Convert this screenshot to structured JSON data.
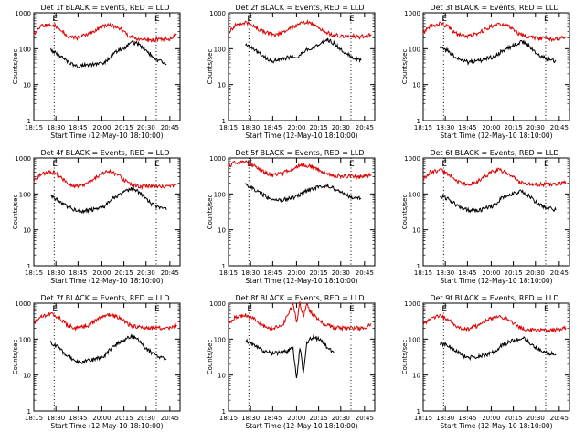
{
  "figure": {
    "colors": {
      "events": "#000000",
      "lld": "#dd0000",
      "axes": "#000000"
    },
    "xtick_labels": [
      "18:15",
      "18:30",
      "18:45",
      "20:00",
      "20:15",
      "20:30",
      "20:45"
    ],
    "ytick_labels": [
      "1",
      "10",
      "100",
      "1000"
    ],
    "marker_label": "E",
    "panels": [
      {
        "title": "Det 1f BLACK = Events, RED = LLD",
        "ylabel": "Counts/sec",
        "xlabel": "Start Time (12-May-10 18:10:00)"
      },
      {
        "title": "Det 2f BLACK = Events, RED = LLD",
        "ylabel": "Counts/sec",
        "xlabel": "Start Time (12-May-10 18:10:00)"
      },
      {
        "title": "Det 3f BLACK = Events, RED = LLD",
        "ylabel": "Counts/sec",
        "xlabel": "Start Time (12-May-10 18:10:00)"
      },
      {
        "title": "Det 4f BLACK = Events, RED = LLD",
        "ylabel": "Counts/sec",
        "xlabel": "Start Time (12-May-10 18:10:00)"
      },
      {
        "title": "Det 5f BLACK = Events, RED = LLD",
        "ylabel": "Counts/sec",
        "xlabel": "Start Time (12-May-10 18:10:00)"
      },
      {
        "title": "Det 6f BLACK = Events, RED = LLD",
        "ylabel": "Counts/sec",
        "xlabel": "Start Time (12-May-10 18:10:00)"
      },
      {
        "title": "Det 7f BLACK = Events, RED = LLD",
        "ylabel": "Counts/sec",
        "xlabel": "Start Time (12-May-10 18:10:00)"
      },
      {
        "title": "Det 8f BLACK = Events, RED = LLD",
        "ylabel": "Counts/sec",
        "xlabel": "Start Time (12-May-10 18:10:00)"
      },
      {
        "title": "Det 9f BLACK = Events, RED = LLD",
        "ylabel": "Counts/sec",
        "xlabel": "Start Time (12-May-10 18:10:00)"
      }
    ]
  },
  "chart_data": [
    {
      "type": "line",
      "title": "Det 1f BLACK = Events, RED = LLD",
      "xlabel": "Start Time (12-May-10 18:10:00)",
      "ylabel": "Counts/sec",
      "yscale": "log",
      "ylim": [
        1,
        1000
      ],
      "xlim_minutes": [
        0,
        43
      ],
      "event_markers_minutes": [
        6,
        36
      ],
      "series": [
        {
          "name": "LLD",
          "color": "red",
          "x_minutes": [
            0,
            2,
            5,
            7,
            10,
            13,
            16,
            20,
            22,
            25,
            28,
            31,
            34,
            36,
            38,
            40,
            42
          ],
          "values": [
            250,
            420,
            480,
            400,
            220,
            200,
            250,
            420,
            470,
            380,
            220,
            180,
            170,
            180,
            180,
            190,
            250
          ]
        },
        {
          "name": "Events",
          "color": "black",
          "x_minutes": [
            5,
            7,
            9,
            11,
            13,
            15,
            17,
            19,
            21,
            23,
            25,
            27,
            29,
            31,
            33,
            35,
            37,
            39
          ],
          "values": [
            95,
            70,
            50,
            38,
            32,
            35,
            36,
            40,
            42,
            70,
            90,
            110,
            150,
            130,
            90,
            60,
            45,
            38
          ]
        }
      ]
    },
    {
      "type": "line",
      "title": "Det 2f BLACK = Events, RED = LLD",
      "xlabel": "Start Time (12-May-10 18:10:00)",
      "ylabel": "Counts/sec",
      "yscale": "log",
      "ylim": [
        1,
        1000
      ],
      "xlim_minutes": [
        0,
        43
      ],
      "event_markers_minutes": [
        6,
        36
      ],
      "series": [
        {
          "name": "LLD",
          "color": "red",
          "x_minutes": [
            0,
            2,
            5,
            7,
            10,
            13,
            16,
            20,
            22,
            25,
            28,
            31,
            34,
            36,
            38,
            40,
            42
          ],
          "values": [
            280,
            450,
            550,
            460,
            300,
            240,
            280,
            450,
            560,
            480,
            300,
            240,
            220,
            230,
            210,
            220,
            240
          ]
        },
        {
          "name": "Events",
          "color": "black",
          "x_minutes": [
            5,
            7,
            9,
            11,
            13,
            15,
            17,
            19,
            21,
            23,
            25,
            27,
            29,
            31,
            33,
            35,
            37,
            39
          ],
          "values": [
            140,
            100,
            75,
            55,
            45,
            50,
            55,
            60,
            65,
            90,
            110,
            140,
            180,
            140,
            95,
            70,
            55,
            48
          ]
        }
      ]
    },
    {
      "type": "line",
      "title": "Det 3f BLACK = Events, RED = LLD",
      "xlabel": "Start Time (12-May-10 18:10:00)",
      "ylabel": "Counts/sec",
      "yscale": "log",
      "ylim": [
        1,
        1000
      ],
      "xlim_minutes": [
        0,
        43
      ],
      "event_markers_minutes": [
        6,
        36
      ],
      "series": [
        {
          "name": "LLD",
          "color": "red",
          "x_minutes": [
            0,
            2,
            5,
            7,
            10,
            13,
            16,
            20,
            22,
            25,
            28,
            31,
            34,
            36,
            38,
            40,
            42
          ],
          "values": [
            270,
            420,
            500,
            420,
            260,
            220,
            260,
            430,
            500,
            420,
            260,
            210,
            190,
            200,
            180,
            190,
            220
          ]
        },
        {
          "name": "Events",
          "color": "black",
          "x_minutes": [
            5,
            7,
            9,
            11,
            13,
            15,
            17,
            19,
            21,
            23,
            25,
            27,
            29,
            31,
            33,
            35,
            37,
            39
          ],
          "values": [
            110,
            90,
            65,
            50,
            42,
            45,
            48,
            55,
            60,
            85,
            105,
            130,
            160,
            120,
            80,
            60,
            50,
            45
          ]
        }
      ]
    },
    {
      "type": "line",
      "title": "Det 4f BLACK = Events, RED = LLD",
      "xlabel": "Start Time (12-May-10 18:10:00)",
      "ylabel": "Counts/sec",
      "yscale": "log",
      "ylim": [
        1,
        1000
      ],
      "xlim_minutes": [
        0,
        43
      ],
      "event_markers_minutes": [
        6,
        36
      ],
      "series": [
        {
          "name": "LLD",
          "color": "red",
          "x_minutes": [
            0,
            2,
            5,
            7,
            10,
            13,
            16,
            20,
            22,
            25,
            28,
            31,
            34,
            36,
            38,
            40,
            42
          ],
          "values": [
            220,
            360,
            420,
            340,
            190,
            160,
            200,
            360,
            420,
            330,
            190,
            160,
            160,
            165,
            160,
            170,
            180
          ]
        },
        {
          "name": "Events",
          "color": "black",
          "x_minutes": [
            5,
            7,
            9,
            11,
            13,
            15,
            17,
            19,
            21,
            23,
            25,
            27,
            29,
            31,
            33,
            35,
            37,
            39
          ],
          "values": [
            90,
            70,
            50,
            40,
            33,
            34,
            36,
            40,
            45,
            75,
            95,
            120,
            140,
            110,
            70,
            50,
            42,
            36
          ]
        }
      ]
    },
    {
      "type": "line",
      "title": "Det 5f BLACK = Events, RED = LLD",
      "xlabel": "Start Time (12-May-10 18:10:00)",
      "ylabel": "Counts/sec",
      "yscale": "log",
      "ylim": [
        1,
        1000
      ],
      "xlim_minutes": [
        0,
        43
      ],
      "event_markers_minutes": [
        6,
        36
      ],
      "series": [
        {
          "name": "LLD",
          "color": "red",
          "x_minutes": [
            0,
            2,
            5,
            7,
            10,
            13,
            16,
            20,
            22,
            25,
            28,
            31,
            34,
            36,
            38,
            40,
            42
          ],
          "values": [
            600,
            750,
            800,
            650,
            420,
            330,
            380,
            560,
            640,
            560,
            400,
            330,
            310,
            300,
            290,
            310,
            340
          ]
        },
        {
          "name": "Events",
          "color": "black",
          "x_minutes": [
            5,
            7,
            9,
            11,
            13,
            15,
            17,
            19,
            21,
            23,
            25,
            27,
            29,
            31,
            33,
            35,
            37,
            39
          ],
          "values": [
            180,
            140,
            110,
            85,
            70,
            68,
            70,
            80,
            95,
            120,
            140,
            160,
            170,
            140,
            110,
            90,
            80,
            75
          ]
        }
      ]
    },
    {
      "type": "line",
      "title": "Det 6f BLACK = Events, RED = LLD",
      "xlabel": "Start Time (12-May-10 18:10:00)",
      "ylabel": "Counts/sec",
      "yscale": "log",
      "ylim": [
        1,
        1000
      ],
      "xlim_minutes": [
        0,
        43
      ],
      "event_markers_minutes": [
        6,
        36
      ],
      "series": [
        {
          "name": "LLD",
          "color": "red",
          "x_minutes": [
            0,
            2,
            5,
            7,
            10,
            13,
            16,
            20,
            22,
            25,
            28,
            31,
            34,
            36,
            38,
            40,
            42
          ],
          "values": [
            260,
            400,
            460,
            380,
            220,
            180,
            220,
            400,
            470,
            380,
            220,
            190,
            180,
            185,
            180,
            190,
            210
          ]
        },
        {
          "name": "Events",
          "color": "black",
          "x_minutes": [
            5,
            7,
            9,
            11,
            13,
            15,
            17,
            19,
            21,
            23,
            25,
            27,
            29,
            31,
            33,
            35,
            37,
            39
          ],
          "values": [
            85,
            75,
            55,
            42,
            35,
            34,
            36,
            42,
            48,
            75,
            90,
            105,
            115,
            90,
            60,
            45,
            40,
            36
          ]
        }
      ]
    },
    {
      "type": "line",
      "title": "Det 7f BLACK = Events, RED = LLD",
      "xlabel": "Start Time (12-May-10 18:10:00)",
      "ylabel": "Counts/sec",
      "yscale": "log",
      "ylim": [
        1,
        1000
      ],
      "xlim_minutes": [
        0,
        43
      ],
      "event_markers_minutes": [
        6,
        36
      ],
      "series": [
        {
          "name": "LLD",
          "color": "red",
          "x_minutes": [
            0,
            2,
            5,
            7,
            10,
            13,
            16,
            20,
            22,
            25,
            28,
            31,
            34,
            36,
            38,
            40,
            42
          ],
          "values": [
            280,
            420,
            500,
            420,
            240,
            200,
            240,
            420,
            480,
            400,
            250,
            210,
            200,
            210,
            200,
            210,
            250
          ]
        },
        {
          "name": "Events",
          "color": "black",
          "x_minutes": [
            5,
            7,
            9,
            11,
            13,
            15,
            17,
            19,
            21,
            23,
            25,
            27,
            29,
            31,
            33,
            35,
            37,
            39
          ],
          "values": [
            80,
            60,
            40,
            30,
            22,
            24,
            26,
            30,
            35,
            60,
            80,
            100,
            120,
            90,
            55,
            40,
            32,
            28
          ]
        }
      ]
    },
    {
      "type": "line",
      "title": "Det 8f BLACK = Events, RED = LLD",
      "xlabel": "Start Time (12-May-10 18:10:00)",
      "ylabel": "Counts/sec",
      "yscale": "log",
      "ylim": [
        1,
        1000
      ],
      "xlim_minutes": [
        0,
        43
      ],
      "event_markers_minutes": [
        6,
        36
      ],
      "series": [
        {
          "name": "LLD",
          "color": "red",
          "x_minutes": [
            0,
            2,
            5,
            7,
            10,
            13,
            16,
            19,
            20,
            21,
            22,
            23,
            24,
            25,
            28,
            31,
            34,
            36,
            38,
            40,
            42
          ],
          "values": [
            260,
            400,
            470,
            400,
            240,
            200,
            240,
            1000,
            300,
            1000,
            420,
            1000,
            600,
            460,
            260,
            210,
            200,
            205,
            200,
            210,
            260
          ]
        },
        {
          "name": "Events",
          "color": "black",
          "x_minutes": [
            5,
            7,
            9,
            11,
            13,
            15,
            17,
            19,
            20,
            21,
            22,
            23,
            24,
            25,
            27,
            29,
            31
          ],
          "values": [
            90,
            70,
            55,
            45,
            40,
            42,
            45,
            55,
            8,
            60,
            12,
            75,
            100,
            115,
            95,
            60,
            42
          ]
        }
      ]
    },
    {
      "type": "line",
      "title": "Det 9f BLACK = Events, RED = LLD",
      "xlabel": "Start Time (12-May-10 18:10:00)",
      "ylabel": "Counts/sec",
      "yscale": "log",
      "ylim": [
        1,
        1000
      ],
      "xlim_minutes": [
        0,
        43
      ],
      "event_markers_minutes": [
        6,
        36
      ],
      "series": [
        {
          "name": "LLD",
          "color": "red",
          "x_minutes": [
            0,
            2,
            5,
            7,
            10,
            13,
            16,
            20,
            22,
            25,
            28,
            31,
            34,
            36,
            38,
            40,
            42
          ],
          "values": [
            240,
            380,
            440,
            360,
            220,
            190,
            230,
            380,
            430,
            360,
            220,
            180,
            175,
            180,
            175,
            185,
            200
          ]
        },
        {
          "name": "Events",
          "color": "black",
          "x_minutes": [
            5,
            7,
            9,
            11,
            13,
            15,
            17,
            19,
            21,
            23,
            25,
            27,
            29,
            31,
            33,
            35,
            37,
            39
          ],
          "values": [
            75,
            70,
            50,
            38,
            30,
            32,
            34,
            38,
            45,
            65,
            80,
            95,
            110,
            85,
            60,
            45,
            40,
            38
          ]
        }
      ]
    }
  ]
}
